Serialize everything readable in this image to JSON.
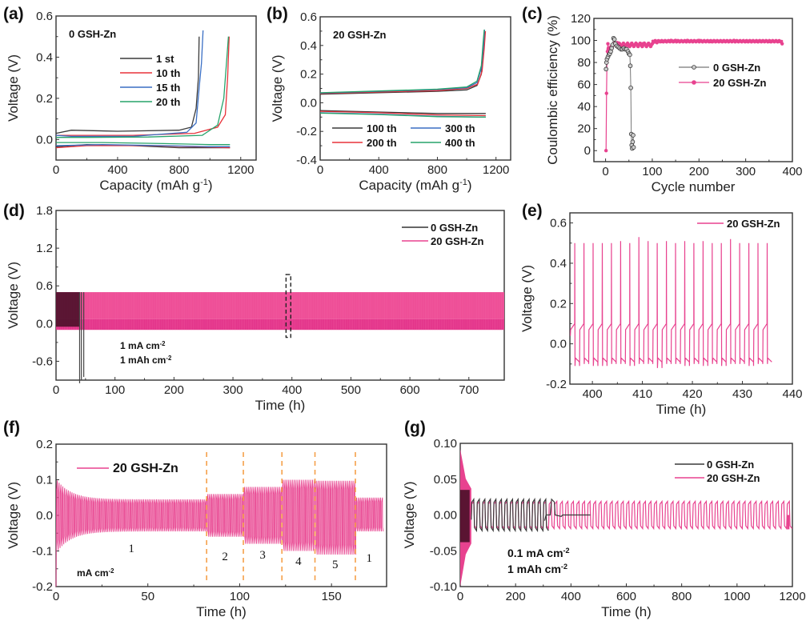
{
  "colors": {
    "black": "#3a3a3a",
    "red": "#e8323a",
    "blue": "#3a6fc4",
    "green": "#27a36a",
    "pink": "#e8428f",
    "pink_dark": "#d81b7a",
    "dark_burgundy": "#4a1028",
    "orange_dash": "#f5a04a"
  },
  "chart_data": [
    {
      "id": "a",
      "panel_label": "(a)",
      "type": "line",
      "title": "0 GSH-Zn",
      "xlabel": "Capacity (mAh g⁻¹)",
      "ylabel": "Voltage (V)",
      "xlim": [
        0,
        1300
      ],
      "ylim": [
        -0.1,
        0.6
      ],
      "xticks": [
        0,
        400,
        800,
        1200
      ],
      "xtick_labels": [
        "0",
        "400",
        "800",
        "1200"
      ],
      "yticks": [
        0.0,
        0.2,
        0.4,
        0.6
      ],
      "ytick_labels": [
        "0.0",
        "0.2",
        "0.4",
        "0.6"
      ],
      "legend": "center-right",
      "series": [
        {
          "name": "1 st",
          "color": "#3a3a3a",
          "charge": [
            [
              0,
              0.03
            ],
            [
              100,
              0.045
            ],
            [
              400,
              0.04
            ],
            [
              800,
              0.045
            ],
            [
              880,
              0.06
            ],
            [
              910,
              0.15
            ],
            [
              925,
              0.3
            ],
            [
              930,
              0.5
            ]
          ],
          "discharge": [
            [
              0,
              -0.035
            ],
            [
              200,
              -0.025
            ],
            [
              500,
              -0.03
            ],
            [
              800,
              -0.04
            ],
            [
              1130,
              -0.04
            ]
          ]
        },
        {
          "name": "10 th",
          "color": "#e8323a",
          "charge": [
            [
              0,
              0.02
            ],
            [
              100,
              0.02
            ],
            [
              500,
              0.02
            ],
            [
              900,
              0.03
            ],
            [
              1050,
              0.06
            ],
            [
              1100,
              0.12
            ],
            [
              1115,
              0.3
            ],
            [
              1125,
              0.5
            ]
          ],
          "discharge": [
            [
              0,
              -0.04
            ],
            [
              200,
              -0.03
            ],
            [
              600,
              -0.03
            ],
            [
              900,
              -0.035
            ],
            [
              1130,
              -0.04
            ]
          ]
        },
        {
          "name": "15 th",
          "color": "#3a6fc4",
          "charge": [
            [
              0,
              0.02
            ],
            [
              100,
              0.015
            ],
            [
              500,
              0.015
            ],
            [
              850,
              0.035
            ],
            [
              910,
              0.08
            ],
            [
              930,
              0.25
            ],
            [
              945,
              0.37
            ],
            [
              955,
              0.53
            ]
          ],
          "discharge": [
            [
              0,
              -0.03
            ],
            [
              300,
              -0.025
            ],
            [
              700,
              -0.03
            ],
            [
              1000,
              -0.035
            ],
            [
              1130,
              -0.035
            ]
          ]
        },
        {
          "name": "20 th",
          "color": "#27a36a",
          "charge": [
            [
              0,
              0.01
            ],
            [
              200,
              0.01
            ],
            [
              600,
              0.012
            ],
            [
              950,
              0.02
            ],
            [
              1050,
              0.07
            ],
            [
              1090,
              0.2
            ],
            [
              1110,
              0.4
            ],
            [
              1120,
              0.5
            ]
          ],
          "discharge": [
            [
              0,
              -0.015
            ],
            [
              300,
              -0.015
            ],
            [
              700,
              -0.02
            ],
            [
              1000,
              -0.025
            ],
            [
              1130,
              -0.025
            ]
          ]
        }
      ]
    },
    {
      "id": "b",
      "panel_label": "(b)",
      "type": "line",
      "title": "20 GSH-Zn",
      "xlabel": "Capacity (mAh g⁻¹)",
      "ylabel": "Voltage (V)",
      "xlim": [
        0,
        1300
      ],
      "ylim": [
        -0.4,
        0.6
      ],
      "xticks": [
        0,
        400,
        800,
        1200
      ],
      "xtick_labels": [
        "0",
        "400",
        "800",
        "1200"
      ],
      "yticks": [
        -0.4,
        -0.2,
        0.0,
        0.2,
        0.4,
        0.6
      ],
      "ytick_labels": [
        "-0.4",
        "-0.2",
        "0.0",
        "0.2",
        "0.4",
        "0.6"
      ],
      "legend": "bottom",
      "series": [
        {
          "name": "100 th",
          "color": "#3a3a3a",
          "charge": [
            [
              0,
              0.06
            ],
            [
              400,
              0.07
            ],
            [
              800,
              0.08
            ],
            [
              1000,
              0.09
            ],
            [
              1070,
              0.12
            ],
            [
              1100,
              0.2
            ],
            [
              1115,
              0.35
            ],
            [
              1125,
              0.5
            ]
          ],
          "discharge": [
            [
              0,
              -0.055
            ],
            [
              400,
              -0.065
            ],
            [
              800,
              -0.075
            ],
            [
              1130,
              -0.075
            ]
          ]
        },
        {
          "name": "200 th",
          "color": "#e8323a",
          "charge": [
            [
              0,
              0.065
            ],
            [
              400,
              0.075
            ],
            [
              800,
              0.085
            ],
            [
              1000,
              0.1
            ],
            [
              1075,
              0.13
            ],
            [
              1105,
              0.22
            ],
            [
              1120,
              0.38
            ],
            [
              1128,
              0.5
            ]
          ],
          "discharge": [
            [
              0,
              -0.06
            ],
            [
              400,
              -0.07
            ],
            [
              800,
              -0.085
            ],
            [
              1130,
              -0.09
            ]
          ]
        },
        {
          "name": "300 th",
          "color": "#3a6fc4",
          "charge": [
            [
              0,
              0.068
            ],
            [
              400,
              0.08
            ],
            [
              800,
              0.092
            ],
            [
              1000,
              0.105
            ],
            [
              1070,
              0.14
            ],
            [
              1100,
              0.24
            ],
            [
              1115,
              0.4
            ],
            [
              1122,
              0.51
            ]
          ],
          "discharge": [
            [
              0,
              -0.07
            ],
            [
              400,
              -0.08
            ],
            [
              800,
              -0.095
            ],
            [
              1130,
              -0.1
            ]
          ]
        },
        {
          "name": "400 th",
          "color": "#27a36a",
          "charge": [
            [
              0,
              0.07
            ],
            [
              400,
              0.082
            ],
            [
              800,
              0.095
            ],
            [
              1000,
              0.11
            ],
            [
              1070,
              0.15
            ],
            [
              1100,
              0.26
            ],
            [
              1112,
              0.42
            ],
            [
              1120,
              0.51
            ]
          ],
          "discharge": [
            [
              0,
              -0.072
            ],
            [
              400,
              -0.082
            ],
            [
              800,
              -0.097
            ],
            [
              1130,
              -0.1
            ]
          ]
        }
      ]
    },
    {
      "id": "c",
      "panel_label": "(c)",
      "type": "scatter",
      "xlabel": "Cycle number",
      "ylabel": "Coulombic efficiency (%)",
      "xlim": [
        -25,
        400
      ],
      "ylim": [
        -10,
        120
      ],
      "xticks": [
        0,
        100,
        200,
        300,
        400
      ],
      "xtick_labels": [
        "0",
        "100",
        "200",
        "300",
        "400"
      ],
      "yticks": [
        0,
        20,
        40,
        60,
        80,
        100,
        120
      ],
      "ytick_labels": [
        "0",
        "20",
        "40",
        "60",
        "80",
        "100",
        "120"
      ],
      "legend": "center-right",
      "series": [
        {
          "name": "0 GSH-Zn",
          "color": "#3a3a3a",
          "x": [
            1,
            2,
            3,
            5,
            7,
            9,
            11,
            13,
            15,
            17,
            19,
            21,
            24,
            27,
            30,
            33,
            36,
            39,
            42,
            45,
            48,
            50,
            52,
            53,
            54,
            55,
            56,
            57,
            58,
            59,
            60
          ],
          "y": [
            74,
            80,
            83,
            85,
            87,
            88,
            90,
            93,
            96,
            102,
            101,
            97,
            95,
            94,
            93,
            92,
            92,
            93,
            92,
            92,
            90,
            88,
            87,
            77,
            57,
            15,
            5,
            2,
            8,
            14,
            3
          ]
        },
        {
          "name": "20 GSH-Zn",
          "color": "#e8428f",
          "x": [
            1,
            2,
            3,
            4,
            5,
            6,
            8,
            10,
            12,
            15,
            20,
            25,
            30,
            40,
            50,
            60,
            70,
            80,
            90,
            100,
            110,
            120,
            130,
            140,
            150,
            175,
            200,
            225,
            250,
            275,
            300,
            325,
            350,
            370,
            378
          ],
          "y": [
            0,
            52,
            80,
            90,
            97,
            93,
            91,
            90,
            92,
            95,
            97,
            98,
            97,
            96,
            95,
            95,
            96,
            97,
            96,
            97,
            98,
            99,
            99,
            100,
            100,
            100,
            100,
            99,
            99,
            100,
            99,
            99,
            99,
            99,
            97
          ]
        }
      ]
    },
    {
      "id": "d",
      "panel_label": "(d)",
      "type": "line",
      "xlabel": "Time (h)",
      "ylabel": "Voltage (V)",
      "xlim": [
        0,
        760
      ],
      "ylim": [
        -0.9,
        1.8
      ],
      "xticks": [
        0,
        100,
        200,
        300,
        400,
        500,
        600,
        700
      ],
      "xtick_labels": [
        "0",
        "100",
        "200",
        "300",
        "400",
        "500",
        "600",
        "700"
      ],
      "yticks": [
        -0.6,
        0.0,
        0.6,
        1.2,
        1.8
      ],
      "ytick_labels": [
        "-0.6",
        "0.0",
        "0.6",
        "1.2",
        "1.8"
      ],
      "legend": "top-right",
      "annotations": [
        "1 mA cm⁻²",
        "1 mAh cm⁻²"
      ],
      "highlight_box_x": [
        390,
        398
      ],
      "series": [
        {
          "name": "0 GSH-Zn",
          "color": "#3a3a3a",
          "envelope": {
            "x_start": 0,
            "x_end": 40,
            "upper": 0.5,
            "lower": -0.05
          },
          "failure_spikes": [
            {
              "x": 40,
              "min": -0.95
            },
            {
              "x": 43,
              "min": -0.9
            },
            {
              "x": 47,
              "min": -0.85
            }
          ]
        },
        {
          "name": "20 GSH-Zn",
          "color": "#e8428f",
          "envelope": {
            "x_start": 0,
            "x_end": 760,
            "upper": 0.5,
            "lower": -0.1,
            "mid": 0.07
          }
        }
      ]
    },
    {
      "id": "e",
      "panel_label": "(e)",
      "type": "line",
      "xlabel": "Time (h)",
      "ylabel": "Voltage (V)",
      "xlim": [
        395.5,
        440
      ],
      "ylim": [
        -0.2,
        0.65
      ],
      "xticks": [
        400,
        410,
        420,
        430,
        440
      ],
      "xtick_labels": [
        "400",
        "410",
        "420",
        "430",
        "440"
      ],
      "yticks": [
        -0.2,
        0.0,
        0.2,
        0.4,
        0.6
      ],
      "ytick_labels": [
        "-0.2",
        "0.0",
        "0.2",
        "0.4",
        "0.6"
      ],
      "legend": "top-right",
      "series": [
        {
          "name": "20 GSH-Zn",
          "color": "#e8428f",
          "cycle_period_h": 2.05,
          "first_cycle_start_h": 395.6,
          "cycles": 22,
          "plateau_charge_V": [
            0.07,
            0.1
          ],
          "peak_V": [
            0.5,
            0.5,
            0.5,
            0.5,
            0.5,
            0.51,
            0.5,
            0.53,
            0.51,
            0.5,
            0.51,
            0.5,
            0.51,
            0.5,
            0.51,
            0.5,
            0.5,
            0.52,
            0.5,
            0.5,
            0.5,
            0.5
          ],
          "plateau_discharge_V": [
            -0.07,
            -0.09
          ],
          "dip_V": [
            -0.11,
            -0.1,
            -0.11,
            -0.11,
            -0.1,
            -0.1,
            -0.11,
            -0.1,
            -0.1,
            -0.12,
            -0.1,
            -0.1,
            -0.11,
            -0.1,
            -0.11,
            -0.1,
            -0.11,
            -0.1,
            -0.1,
            -0.11,
            -0.1,
            -0.1
          ]
        }
      ]
    },
    {
      "id": "f",
      "panel_label": "(f)",
      "type": "line",
      "xlabel": "Time (h)",
      "ylabel": "Voltage (V)",
      "xlim": [
        0,
        180
      ],
      "ylim": [
        -0.2,
        0.2
      ],
      "xticks": [
        0,
        50,
        100,
        150
      ],
      "xtick_labels": [
        "0",
        "50",
        "100",
        "150"
      ],
      "yticks": [
        -0.2,
        -0.1,
        0.0,
        0.1,
        0.2
      ],
      "ytick_labels": [
        "-0.2",
        "-0.1",
        "0.0",
        "0.1",
        "0.2"
      ],
      "legend": "top-left",
      "unit_annotation": "mA cm⁻²",
      "rate_boundaries_h": [
        82,
        102,
        123,
        141,
        163
      ],
      "segments": [
        {
          "label": "1",
          "x_start": 0,
          "x_end": 82,
          "upper": 0.045,
          "lower": -0.045
        },
        {
          "label": "2",
          "x_start": 82,
          "x_end": 102,
          "upper": 0.06,
          "lower": -0.06
        },
        {
          "label": "3",
          "x_start": 102,
          "x_end": 123,
          "upper": 0.08,
          "lower": -0.08
        },
        {
          "label": "4",
          "x_start": 123,
          "x_end": 141,
          "upper": 0.1,
          "lower": -0.1
        },
        {
          "label": "5",
          "x_start": 141,
          "x_end": 163,
          "upper": 0.097,
          "lower": -0.11
        },
        {
          "label": "1",
          "x_start": 163,
          "x_end": 178,
          "upper": 0.05,
          "lower": -0.045
        }
      ],
      "initial": {
        "peak": 0.1,
        "trough": -0.2
      },
      "series": [
        {
          "name": "20 GSH-Zn",
          "color": "#e8428f"
        }
      ]
    },
    {
      "id": "g",
      "panel_label": "(g)",
      "type": "line",
      "xlabel": "Time (h)",
      "ylabel": "Voltage (V)",
      "xlim": [
        0,
        1200
      ],
      "ylim": [
        -0.1,
        0.1
      ],
      "xticks": [
        0,
        200,
        400,
        600,
        800,
        1000,
        1200
      ],
      "xtick_labels": [
        "0",
        "200",
        "400",
        "600",
        "800",
        "1000",
        "1200"
      ],
      "yticks": [
        -0.1,
        -0.05,
        0.0,
        0.05,
        0.1
      ],
      "ytick_labels": [
        "-0.10",
        "-0.05",
        "0.00",
        "0.05",
        "0.10"
      ],
      "legend": "top-right",
      "annotations": [
        "0.1 mA cm⁻²",
        "1 mAh cm⁻²"
      ],
      "series": [
        {
          "name": "0 GSH-Zn",
          "color": "#3a3a3a",
          "initial_burst": {
            "x_end": 40,
            "upper": 0.035,
            "lower": -0.038
          },
          "oscillation": {
            "x_start": 40,
            "x_end": 305,
            "amplitude": 0.022,
            "period_h": 20
          },
          "failure": {
            "x_start": 305,
            "x_end": 470,
            "spike_x": 335,
            "spike_V": 0.022,
            "flat_V": 0.0
          }
        },
        {
          "name": "20 GSH-Zn",
          "color": "#e8428f",
          "initial_burst": {
            "x_end": 40,
            "upper": 0.092,
            "lower": -0.1
          },
          "oscillation": {
            "x_start": 40,
            "x_end": 1185,
            "amplitude": 0.019,
            "period_h": 20
          }
        }
      ]
    }
  ]
}
